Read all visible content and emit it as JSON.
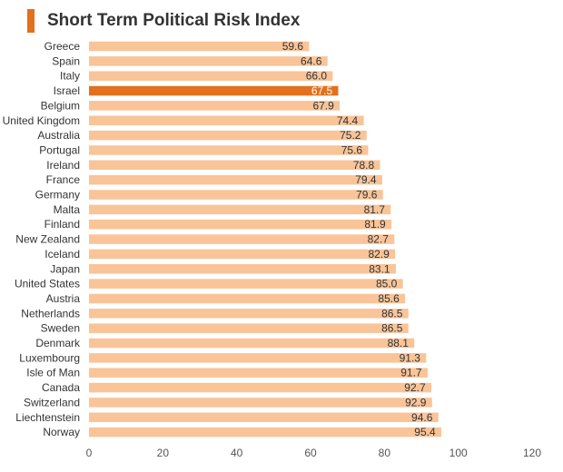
{
  "chart_data": {
    "type": "bar",
    "orientation": "horizontal",
    "title": "Short Term Political Risk Index",
    "xlabel": "",
    "ylabel": "",
    "xlim": [
      0,
      120
    ],
    "ticks": [
      0,
      20,
      40,
      60,
      80,
      100,
      120
    ],
    "grid": false,
    "legend": "none",
    "categories": [
      "Greece",
      "Spain",
      "Italy",
      "Israel",
      "Belgium",
      "United Kingdom",
      "Australia",
      "Portugal",
      "Ireland",
      "France",
      "Germany",
      "Malta",
      "Finland",
      "New Zealand",
      "Iceland",
      "Japan",
      "United States",
      "Austria",
      "Netherlands",
      "Sweden",
      "Denmark",
      "Luxembourg",
      "Isle of Man",
      "Canada",
      "Switzerland",
      "Liechtenstein",
      "Norway"
    ],
    "values": [
      59.6,
      64.6,
      66.0,
      67.5,
      67.9,
      74.4,
      75.2,
      75.6,
      78.8,
      79.4,
      79.6,
      81.7,
      81.9,
      82.7,
      82.9,
      83.1,
      85.0,
      85.6,
      86.5,
      86.5,
      88.1,
      91.3,
      91.7,
      92.7,
      92.9,
      94.6,
      95.4
    ],
    "value_labels": [
      "59.6",
      "64.6",
      "66.0",
      "67.5",
      "67.9",
      "74.4",
      "75.2",
      "75.6",
      "78.8",
      "79.4",
      "79.6",
      "81.7",
      "81.9",
      "82.7",
      "82.9",
      "83.1",
      "85.0",
      "85.6",
      "86.5",
      "86.5",
      "88.1",
      "91.3",
      "91.7",
      "92.7",
      "92.9",
      "94.6",
      "95.4"
    ],
    "highlight": "Israel"
  },
  "colors": {
    "bar": "#f9c498",
    "highlight": "#e2701c",
    "accent": "#e2701c",
    "text": "#333333"
  }
}
